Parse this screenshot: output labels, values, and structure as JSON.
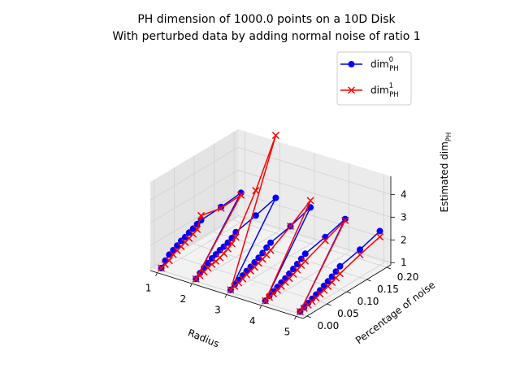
{
  "chart_data": {
    "type": "line",
    "projection": "3d",
    "title_line1": "PH dimension of 1000.0 points on a 10D Disk",
    "title_line2": "With perturbed data by adding normal noise of ratio 1",
    "xlabel": "Radius",
    "ylabel": "Percentage of noise",
    "zlabel_main": "Estimated dim",
    "zlabel_sub": "PH",
    "x_ticks": [
      "1",
      "2",
      "3",
      "4",
      "5"
    ],
    "y_ticks": [
      "0.00",
      "0.05",
      "0.10",
      "0.15",
      "0.20"
    ],
    "z_ticks": [
      "1",
      "2",
      "3",
      "4"
    ],
    "xlim": [
      0.8,
      5.2
    ],
    "ylim": [
      -0.01,
      0.21
    ],
    "zlim": [
      0.9,
      4.8
    ],
    "legend_position": "top-right",
    "noise_levels": [
      0.0,
      0.01,
      0.02,
      0.03,
      0.04,
      0.05,
      0.06,
      0.07,
      0.08,
      0.09,
      0.1,
      0.15,
      0.2
    ],
    "series": [
      {
        "name_main": "dim",
        "name_sup": "0",
        "name_sub": "PH",
        "color": "#0000ff",
        "marker": "circle",
        "radius_values": [
          [
            1,
            [
              1.0,
              1.22,
              1.38,
              1.47,
              1.57,
              1.67,
              1.73,
              1.82,
              1.89,
              1.98,
              2.05,
              2.1,
              2.2
            ]
          ],
          [
            2,
            [
              1.0,
              1.15,
              1.28,
              1.38,
              1.48,
              1.55,
              1.63,
              1.68,
              1.75,
              1.85,
              2.0,
              2.2,
              2.45
            ]
          ],
          [
            3,
            [
              1.0,
              1.12,
              1.22,
              1.31,
              1.4,
              1.48,
              1.57,
              1.67,
              1.77,
              1.9,
              2.01,
              2.2,
              2.5
            ]
          ],
          [
            4,
            [
              1.0,
              1.1,
              1.19,
              1.28,
              1.37,
              1.45,
              1.55,
              1.65,
              1.76,
              1.88,
              2.0,
              2.2,
              2.46
            ]
          ],
          [
            5,
            [
              1.0,
              1.08,
              1.16,
              1.24,
              1.32,
              1.4,
              1.49,
              1.58,
              1.68,
              1.8,
              1.92,
              2.12,
              2.4
            ]
          ]
        ]
      },
      {
        "name_main": "dim",
        "name_sup": "1",
        "name_sub": "PH",
        "color": "#ff0000",
        "marker": "x",
        "radius_values": [
          [
            1,
            [
              1.0,
              1.05,
              1.12,
              1.28,
              1.35,
              1.42,
              1.5,
              1.57,
              1.65,
              1.75,
              2.25,
              2.05,
              2.1
            ]
          ],
          [
            2,
            [
              1.0,
              1.04,
              1.1,
              1.17,
              1.22,
              1.25,
              1.3,
              1.38,
              1.48,
              1.6,
              1.78,
              3.3,
              5.2
            ]
          ],
          [
            3,
            [
              1.0,
              1.05,
              1.1,
              1.17,
              1.24,
              1.3,
              1.36,
              1.43,
              1.5,
              1.58,
              1.68,
              2.2,
              2.8
            ]
          ],
          [
            4,
            [
              1.0,
              1.05,
              1.1,
              1.15,
              1.21,
              1.28,
              1.34,
              1.42,
              1.5,
              1.6,
              1.68,
              2.05,
              2.4
            ]
          ],
          [
            5,
            [
              1.0,
              1.04,
              1.08,
              1.13,
              1.18,
              1.24,
              1.3,
              1.36,
              1.43,
              1.52,
              1.6,
              1.9,
              2.15
            ]
          ]
        ]
      }
    ]
  }
}
